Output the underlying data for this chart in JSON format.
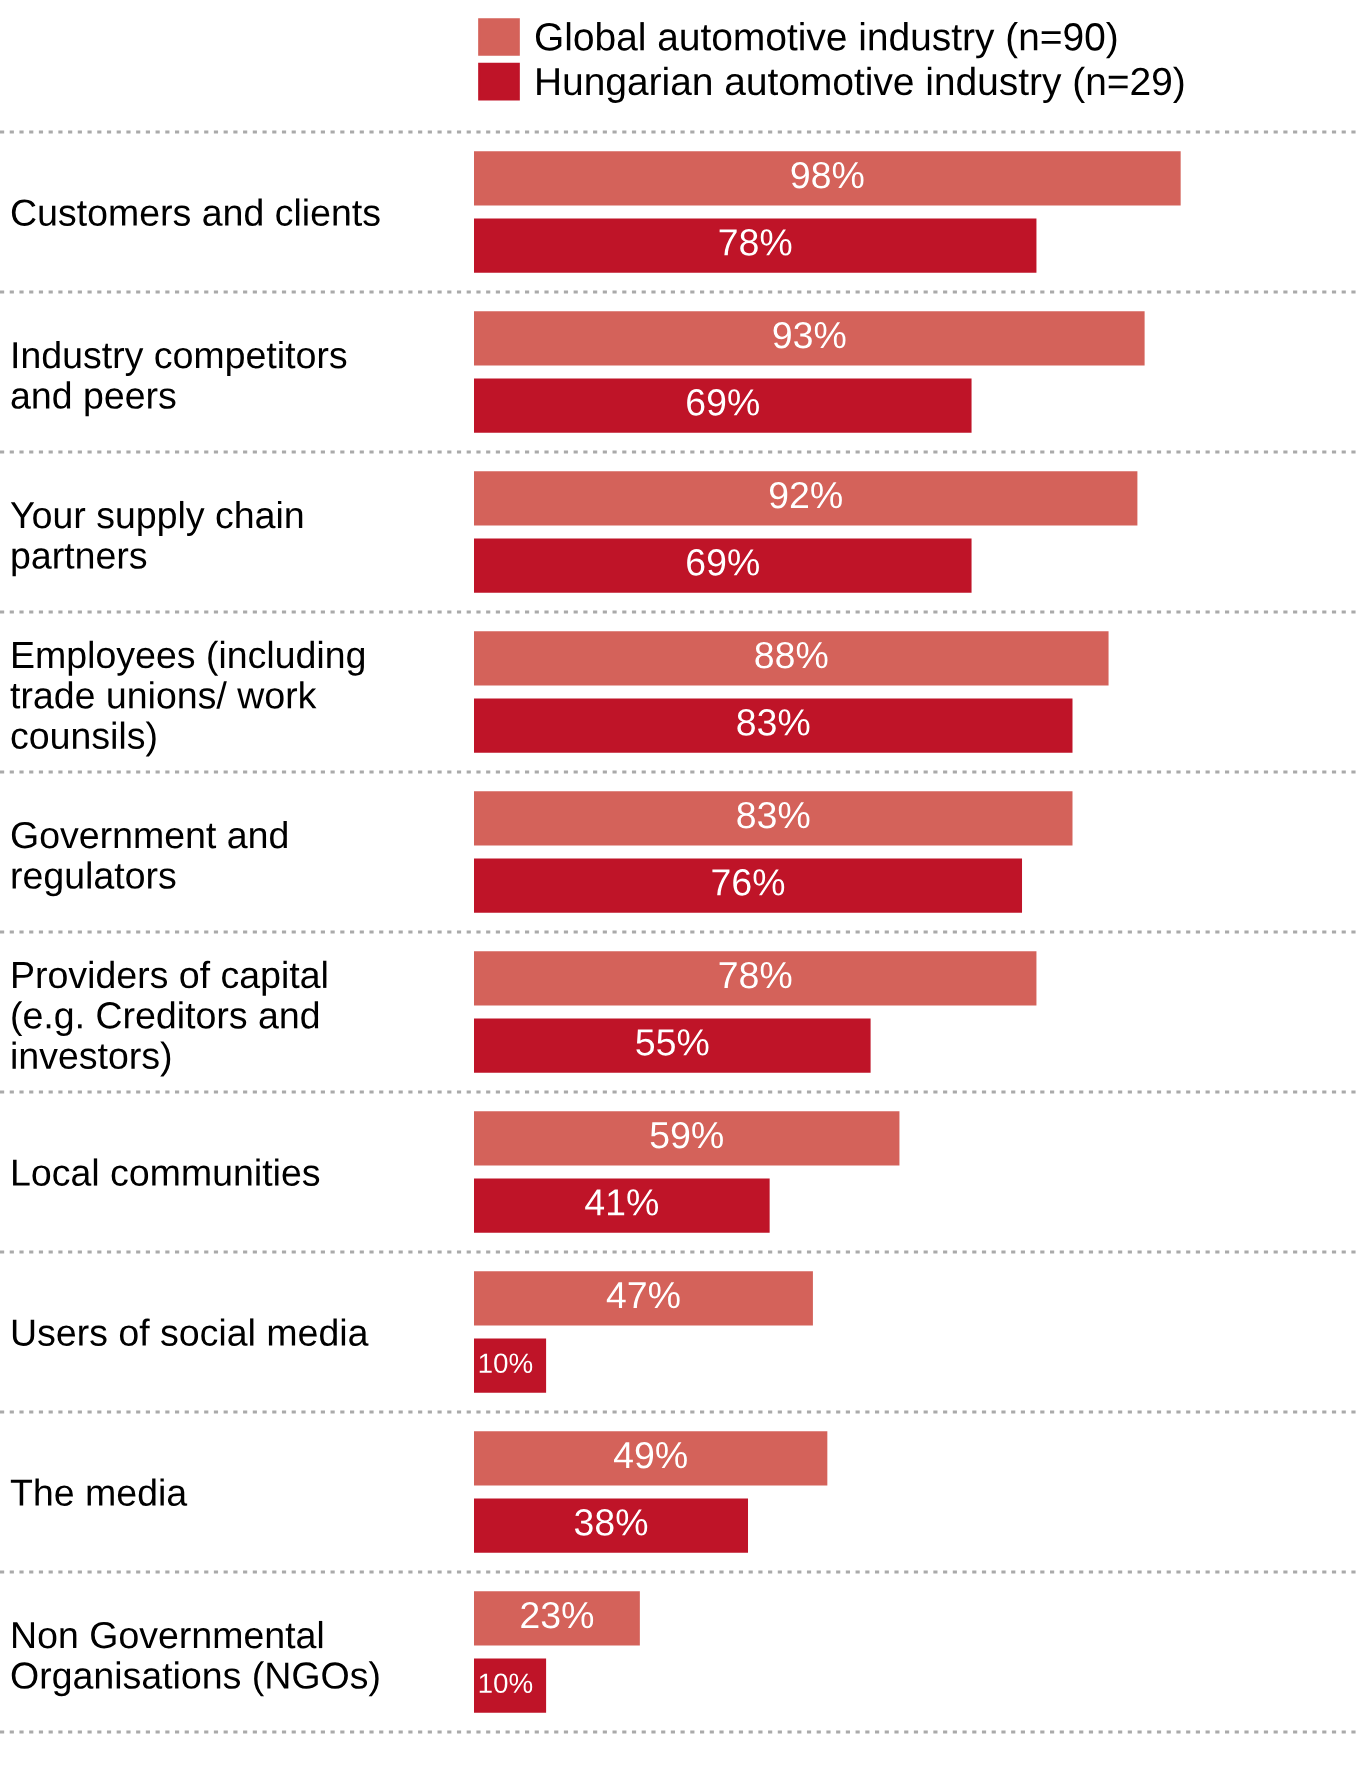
{
  "chart_data": {
    "type": "bar",
    "orientation": "horizontal",
    "legend": "top",
    "categories": [
      "Customers and clients",
      "Industry competitors\nand peers",
      "Your supply chain\npartners",
      "Employees (including\ntrade unions/ work\ncounsils)",
      "Government and\nregulators",
      "Providers of capital\n(e.g. Creditors and\ninvestors)",
      "Local communities",
      "Users of social media",
      "The media",
      "Non Governmental\nOrganisations (NGOs)"
    ],
    "series": [
      {
        "name": "Global automotive industry (n=90)",
        "color": "#d4625a",
        "values": [
          98,
          93,
          92,
          88,
          83,
          78,
          59,
          47,
          49,
          23
        ],
        "value_labels": [
          "98%",
          "93%",
          "92%",
          "88%",
          "83%",
          "78%",
          "59%",
          "47%",
          "49%",
          "23%"
        ]
      },
      {
        "name": "Hungarian automotive industry (n=29)",
        "color": "#bf1428",
        "values": [
          78,
          69,
          69,
          83,
          76,
          55,
          41,
          10,
          38,
          10
        ],
        "value_labels": [
          "78%",
          "69%",
          "69%",
          "83%",
          "76%",
          "55%",
          "41%",
          "10%",
          "38%",
          "10%"
        ]
      }
    ],
    "tick_labels": "y",
    "grid": false
  }
}
